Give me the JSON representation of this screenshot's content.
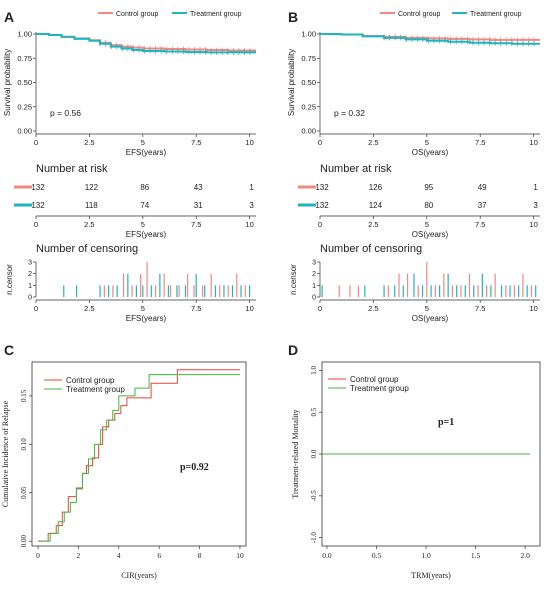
{
  "colors": {
    "control": "#f4877f",
    "treatment": "#1fb5bf",
    "cir_control": "#e8433d",
    "cir_treatment": "#3db83d"
  },
  "chart_data": [
    {
      "panel": "A",
      "type": "line",
      "legend": [
        "Control group",
        "Treatment group"
      ],
      "xlabel": "EFS(years)",
      "ylabel": "Survival probability",
      "xticks": [
        "0",
        "2.5",
        "5",
        "7.5",
        "10"
      ],
      "xlim": [
        0,
        10.3
      ],
      "yticks": [
        "0.00",
        "0.25",
        "0.50",
        "0.75",
        "1.00"
      ],
      "ylim": [
        0,
        1
      ],
      "pvalue": "p = 0.56",
      "series": [
        {
          "name": "Control group",
          "x": [
            0,
            0.6,
            1.2,
            1.8,
            2.5,
            3.0,
            3.5,
            4.0,
            4.5,
            5.0,
            6.0,
            7.0,
            8.0,
            9.0,
            10.3
          ],
          "y": [
            1.0,
            0.99,
            0.97,
            0.955,
            0.935,
            0.91,
            0.885,
            0.87,
            0.86,
            0.85,
            0.845,
            0.84,
            0.835,
            0.83,
            0.83
          ]
        },
        {
          "name": "Treatment group",
          "x": [
            0,
            0.6,
            1.2,
            1.8,
            2.5,
            3.0,
            3.5,
            4.0,
            4.5,
            5.0,
            6.0,
            7.0,
            8.0,
            9.0,
            10.3
          ],
          "y": [
            1.0,
            0.99,
            0.97,
            0.95,
            0.93,
            0.9,
            0.87,
            0.85,
            0.835,
            0.825,
            0.82,
            0.815,
            0.81,
            0.81,
            0.81
          ]
        }
      ]
    },
    {
      "panel": "B",
      "type": "line",
      "legend": [
        "Control group",
        "Treatment group"
      ],
      "xlabel": "OS(years)",
      "ylabel": "Survival probability",
      "xticks": [
        "0",
        "2.5",
        "5",
        "7.5",
        "10"
      ],
      "xlim": [
        0,
        10.3
      ],
      "yticks": [
        "0.00",
        "0.25",
        "0.50",
        "0.75",
        "1.00"
      ],
      "ylim": [
        0,
        1
      ],
      "pvalue": "p = 0.32",
      "series": [
        {
          "name": "Control group",
          "x": [
            0,
            1.0,
            2.0,
            3.0,
            4.0,
            5.0,
            6.0,
            7.0,
            8.0,
            9.0,
            10.3
          ],
          "y": [
            1.0,
            0.995,
            0.98,
            0.97,
            0.96,
            0.955,
            0.95,
            0.945,
            0.94,
            0.94,
            0.94
          ]
        },
        {
          "name": "Treatment group",
          "x": [
            0,
            1.0,
            2.0,
            3.0,
            4.0,
            5.0,
            6.0,
            7.0,
            8.0,
            9.0,
            10.3
          ],
          "y": [
            1.0,
            0.995,
            0.975,
            0.96,
            0.945,
            0.93,
            0.92,
            0.91,
            0.905,
            0.9,
            0.9
          ]
        }
      ]
    },
    {
      "panel": "A-risk",
      "type": "table",
      "title": "Number at risk",
      "xlabel": "EFS(years)",
      "xticks": [
        "0",
        "2.5",
        "5",
        "7.5",
        "10"
      ],
      "xlim": [
        0,
        10.3
      ],
      "x": [
        0,
        2.5,
        5,
        7.5,
        10
      ],
      "rows": [
        {
          "name": "Control group",
          "values": [
            "132",
            "122",
            "86",
            "43",
            "1"
          ]
        },
        {
          "name": "Treatment group",
          "values": [
            "132",
            "118",
            "74",
            "31",
            "3"
          ]
        }
      ]
    },
    {
      "panel": "B-risk",
      "type": "table",
      "title": "Number at risk",
      "xlabel": "OS(years)",
      "xticks": [
        "0",
        "2.5",
        "5",
        "7.5",
        "10"
      ],
      "xlim": [
        0,
        10.3
      ],
      "x": [
        0,
        2.5,
        5,
        7.5,
        10
      ],
      "rows": [
        {
          "name": "Control group",
          "values": [
            "132",
            "126",
            "95",
            "49",
            "1"
          ]
        },
        {
          "name": "Treatment group",
          "values": [
            "132",
            "124",
            "80",
            "37",
            "3"
          ]
        }
      ]
    },
    {
      "panel": "A-censor",
      "type": "bar",
      "title": "Number of censoring",
      "xlabel": "EFS(years)",
      "ylabel": "n.censor",
      "xticks": [
        "0",
        "2.5",
        "5",
        "7.5",
        "10"
      ],
      "xlim": [
        0,
        10.3
      ],
      "yticks": [
        "0",
        "1",
        "2",
        "3"
      ],
      "ylim": [
        0,
        3
      ],
      "series": [
        {
          "name": "Control group",
          "x": [
            3.2,
            3.6,
            4.1,
            4.5,
            4.9,
            5.2,
            5.6,
            6.0,
            6.3,
            6.7,
            7.1,
            7.4,
            7.8,
            8.2,
            8.6,
            9.0,
            9.4,
            9.8
          ],
          "values": [
            1,
            1,
            2,
            1,
            2,
            3,
            1,
            2,
            1,
            1,
            2,
            1,
            1,
            2,
            1,
            1,
            2,
            1
          ]
        },
        {
          "name": "Treatment group",
          "x": [
            1.3,
            1.9,
            3.0,
            3.4,
            3.8,
            4.3,
            4.7,
            5.0,
            5.4,
            5.8,
            6.2,
            6.6,
            7.0,
            7.5,
            7.9,
            8.4,
            8.8,
            9.2,
            9.6,
            10.0
          ],
          "values": [
            1,
            1,
            1,
            1,
            1,
            2,
            1,
            1,
            1,
            2,
            1,
            1,
            1,
            2,
            1,
            1,
            1,
            1,
            1,
            1
          ]
        }
      ]
    },
    {
      "panel": "B-censor",
      "type": "bar",
      "title": "Number of censoring",
      "xlabel": "OS(years)",
      "ylabel": "n.censor",
      "xticks": [
        "0",
        "2.5",
        "5",
        "7.5",
        "10"
      ],
      "xlim": [
        0,
        10.3
      ],
      "yticks": [
        "0",
        "1",
        "2",
        "3"
      ],
      "ylim": [
        0,
        3
      ],
      "series": [
        {
          "name": "Control group",
          "x": [
            0.9,
            1.4,
            1.8,
            3.2,
            3.7,
            4.1,
            4.6,
            5.0,
            5.4,
            5.8,
            6.2,
            6.6,
            7.0,
            7.4,
            7.8,
            8.2,
            8.7,
            9.1,
            9.5,
            9.9
          ],
          "values": [
            1,
            1,
            1,
            1,
            2,
            2,
            1,
            3,
            1,
            2,
            1,
            1,
            2,
            1,
            1,
            2,
            1,
            1,
            2,
            1
          ]
        },
        {
          "name": "Treatment group",
          "x": [
            0.1,
            2.1,
            3.0,
            3.5,
            3.9,
            4.4,
            4.8,
            5.2,
            5.6,
            6.0,
            6.4,
            6.8,
            7.2,
            7.6,
            8.0,
            8.5,
            8.9,
            9.3,
            9.7,
            10.1
          ],
          "values": [
            1,
            1,
            1,
            1,
            1,
            2,
            1,
            1,
            1,
            2,
            1,
            1,
            1,
            2,
            1,
            1,
            1,
            1,
            1,
            1
          ]
        }
      ]
    },
    {
      "panel": "C",
      "type": "line",
      "legend": [
        "Control group",
        "Treatment group"
      ],
      "xlabel": "CIR(years)",
      "ylabel": "Cumulative Incidence of Relapse",
      "xticks": [
        "0",
        "2",
        "4",
        "6",
        "8",
        "10"
      ],
      "xlim": [
        -0.3,
        10.3
      ],
      "yticks": [
        "0.00",
        "0.05",
        "0.10",
        "0.15"
      ],
      "ylim": [
        -0.005,
        0.185
      ],
      "pvalue": "p=0.92",
      "series": [
        {
          "name": "Control group",
          "x": [
            0,
            0.5,
            0.9,
            1.2,
            1.5,
            1.9,
            2.2,
            2.4,
            2.7,
            3.0,
            3.2,
            3.5,
            3.8,
            4.1,
            4.4,
            5.0,
            5.6,
            6.3,
            6.9,
            10.0
          ],
          "y": [
            0,
            0.008,
            0.016,
            0.03,
            0.046,
            0.054,
            0.07,
            0.078,
            0.086,
            0.1,
            0.118,
            0.125,
            0.132,
            0.14,
            0.148,
            0.148,
            0.163,
            0.163,
            0.177,
            0.177
          ]
        },
        {
          "name": "Treatment group",
          "x": [
            0,
            0.6,
            1.0,
            1.3,
            1.6,
            1.9,
            2.2,
            2.5,
            2.8,
            3.1,
            3.4,
            3.7,
            4.0,
            4.3,
            4.8,
            5.5,
            6.2,
            10.0
          ],
          "y": [
            0,
            0.008,
            0.02,
            0.03,
            0.04,
            0.055,
            0.07,
            0.085,
            0.1,
            0.115,
            0.125,
            0.135,
            0.15,
            0.15,
            0.158,
            0.172,
            0.172,
            0.172
          ]
        }
      ]
    },
    {
      "panel": "D",
      "type": "line",
      "legend": [
        "Control group",
        "Treatment group"
      ],
      "xlabel": "TRM(years)",
      "ylabel": "Treatment-related Mortality",
      "xticks": [
        "0.0",
        "0.5",
        "1.0",
        "1.5",
        "2.0"
      ],
      "xlim": [
        -0.05,
        2.15
      ],
      "yticks": [
        "-1.0",
        "-0.5",
        "0.0",
        "0.5",
        "1.0"
      ],
      "ylim": [
        -1.1,
        1.1
      ],
      "pvalue": "p=1",
      "series": [
        {
          "name": "Treatment group",
          "x": [
            -0.05,
            2.05
          ],
          "y": [
            0,
            0
          ]
        }
      ]
    }
  ]
}
